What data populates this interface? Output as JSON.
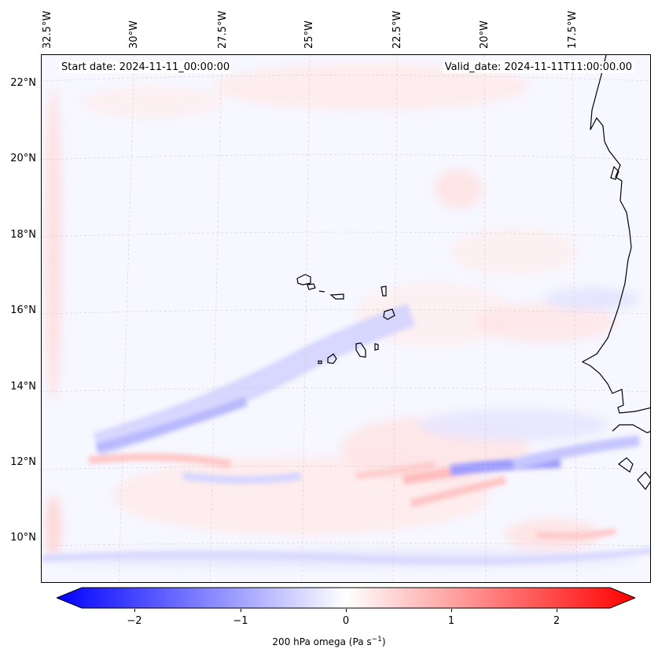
{
  "map": {
    "start_date": "Start date: 2024-11-11_00:00:00",
    "valid_date": "Valid_date: 2024-11-11T11:00:00.00",
    "lon_labels": [
      "32.5°W",
      "30°W",
      "27.5°W",
      "25°W",
      "22.5°W",
      "20°W",
      "17.5°W"
    ],
    "lat_labels": [
      "22°N",
      "20°N",
      "18°N",
      "16°N",
      "14°N",
      "12°N",
      "10°N"
    ],
    "colorbar": {
      "label": "200 hPa omega (Pa s",
      "label_sup": "−1",
      "label_close": ")",
      "ticks": [
        "−2",
        "−1",
        "0",
        "1",
        "2"
      ],
      "min": -2.6,
      "max": 2.6,
      "colors": {
        "negative": "#0000ff",
        "zero": "#ffffff",
        "positive": "#ff0000"
      }
    },
    "colors": {
      "coastline": "#000000",
      "gridline": "#c8b8b8"
    }
  }
}
